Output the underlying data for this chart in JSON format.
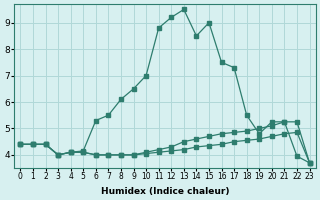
{
  "x_values": [
    0,
    1,
    2,
    3,
    4,
    5,
    6,
    7,
    8,
    9,
    10,
    11,
    12,
    13,
    14,
    15,
    16,
    17,
    18,
    19,
    20,
    21,
    22,
    23
  ],
  "line1": [
    4.4,
    4.4,
    4.4,
    4.0,
    4.1,
    4.1,
    4.0,
    4.0,
    4.0,
    4.0,
    4.05,
    4.1,
    4.15,
    4.2,
    4.3,
    4.35,
    4.4,
    4.5,
    4.55,
    4.6,
    4.7,
    4.8,
    4.85,
    3.7
  ],
  "line2": [
    4.4,
    4.4,
    4.4,
    4.0,
    4.1,
    4.1,
    4.0,
    4.0,
    4.0,
    4.0,
    4.1,
    4.2,
    4.3,
    4.5,
    4.6,
    4.7,
    4.8,
    4.85,
    4.9,
    5.0,
    5.1,
    5.25,
    5.25,
    3.7
  ],
  "line3": [
    4.4,
    4.4,
    4.4,
    4.0,
    4.1,
    4.15,
    5.3,
    5.5,
    6.1,
    6.5,
    7.0,
    8.8,
    9.2,
    9.5,
    8.5,
    9.0,
    7.5,
    7.3,
    5.5,
    4.8,
    5.25,
    5.25,
    3.95,
    3.7
  ],
  "bg_color": "#d7f0f0",
  "line_color": "#2e7d6e",
  "grid_color": "#b0d8d8",
  "xlabel": "Humidex (Indice chaleur)",
  "ylabel": "",
  "xlim": [
    -0.5,
    23.5
  ],
  "ylim": [
    3.5,
    9.7
  ],
  "yticks": [
    4,
    5,
    6,
    7,
    8,
    9
  ],
  "xtick_labels": [
    "0",
    "1",
    "2",
    "3",
    "4",
    "5",
    "6",
    "7",
    "8",
    "9",
    "10",
    "11",
    "12",
    "13",
    "14",
    "15",
    "16",
    "17",
    "18",
    "19",
    "20",
    "21",
    "22",
    "23"
  ]
}
